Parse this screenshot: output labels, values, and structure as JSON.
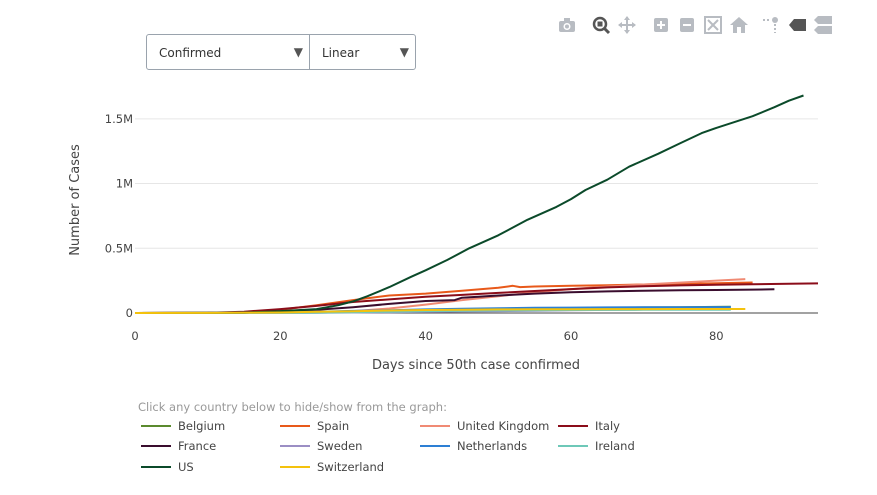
{
  "controls": {
    "metric_label": "Confirmed",
    "scale_label": "Linear"
  },
  "modebar": [
    "camera-icon",
    "zoom-icon",
    "pan-icon",
    "zoom-in-icon",
    "zoom-out-icon",
    "autoscale-icon",
    "reset-axes-icon",
    "spike-lines-icon",
    "hover-closest-icon",
    "hover-compare-icon"
  ],
  "legend_hint": "Click any country below to hide/show from the graph:",
  "chart_data": {
    "type": "line",
    "title": "",
    "xlabel": "Days since 50th case confirmed",
    "ylabel": "Number of Cases",
    "xlim": [
      0,
      94
    ],
    "ylim": [
      0,
      1800000
    ],
    "xticks": [
      0,
      20,
      40,
      60,
      80
    ],
    "xtick_labels": [
      "0",
      "20",
      "40",
      "60",
      "80"
    ],
    "yticks": [
      0,
      500000,
      1000000,
      1500000
    ],
    "ytick_labels": [
      "0",
      "0.5M",
      "1M",
      "1.5M"
    ],
    "grid": true,
    "legend_position": "bottom",
    "series": [
      {
        "name": "Belgium",
        "color": "#5b8a2e",
        "x": [
          0,
          10,
          20,
          25,
          30,
          35,
          40,
          45,
          50,
          55,
          60,
          65,
          70,
          75,
          80,
          82
        ],
        "y": [
          100,
          400,
          1500,
          3000,
          6000,
          10000,
          15000,
          20000,
          26000,
          32000,
          37000,
          40000,
          43000,
          45000,
          47000,
          48000
        ]
      },
      {
        "name": "Spain",
        "color": "#e8591a",
        "x": [
          0,
          10,
          15,
          20,
          25,
          30,
          35,
          40,
          45,
          50,
          52,
          53,
          55,
          60,
          65,
          70,
          75,
          80,
          85
        ],
        "y": [
          100,
          500,
          3000,
          25000,
          60000,
          100000,
          135000,
          150000,
          172000,
          195000,
          210000,
          200000,
          205000,
          210000,
          215000,
          220000,
          225000,
          230000,
          236000
        ]
      },
      {
        "name": "United Kingdom",
        "color": "#f08a74",
        "x": [
          0,
          10,
          20,
          25,
          30,
          35,
          40,
          45,
          50,
          55,
          60,
          65,
          70,
          75,
          80,
          84
        ],
        "y": [
          100,
          300,
          2000,
          6000,
          15000,
          35000,
          65000,
          100000,
          130000,
          160000,
          185000,
          205000,
          220000,
          235000,
          250000,
          262000
        ]
      },
      {
        "name": "Italy",
        "color": "#8b0d1a",
        "x": [
          0,
          10,
          15,
          20,
          25,
          30,
          35,
          40,
          45,
          50,
          55,
          60,
          65,
          70,
          75,
          80,
          85,
          90,
          94
        ],
        "y": [
          100,
          1500,
          10000,
          30000,
          55000,
          85000,
          105000,
          125000,
          140000,
          155000,
          170000,
          185000,
          198000,
          207000,
          213000,
          218000,
          222000,
          226000,
          229000
        ]
      },
      {
        "name": "France",
        "color": "#3a0d2e",
        "x": [
          0,
          10,
          20,
          25,
          30,
          35,
          40,
          44,
          45,
          50,
          55,
          60,
          65,
          70,
          75,
          80,
          85,
          88
        ],
        "y": [
          100,
          1500,
          10000,
          25000,
          45000,
          70000,
          93000,
          100000,
          118000,
          135000,
          150000,
          160000,
          167000,
          172000,
          175000,
          178000,
          181000,
          183000
        ]
      },
      {
        "name": "Sweden",
        "color": "#9b8ec4",
        "x": [
          0,
          10,
          20,
          25,
          30,
          35,
          40,
          45,
          50,
          55,
          60,
          65,
          70,
          74
        ],
        "y": [
          100,
          300,
          1000,
          2000,
          4000,
          6000,
          9000,
          12000,
          15000,
          18000,
          21000,
          24000,
          27000,
          29000
        ]
      },
      {
        "name": "Netherlands",
        "color": "#2d7fd4",
        "x": [
          0,
          10,
          20,
          25,
          30,
          35,
          40,
          45,
          50,
          55,
          60,
          65,
          70,
          75,
          80,
          82
        ],
        "y": [
          100,
          800,
          5000,
          10000,
          16000,
          22000,
          28000,
          33000,
          37000,
          40000,
          42000,
          43500,
          44500,
          45000,
          45500,
          45700
        ]
      },
      {
        "name": "Ireland",
        "color": "#6ec8b8",
        "x": [
          0,
          10,
          20,
          25,
          30,
          35,
          40,
          45,
          50,
          55,
          60,
          65,
          70,
          75,
          80,
          82
        ],
        "y": [
          100,
          300,
          1000,
          3000,
          6000,
          10000,
          15000,
          18000,
          20000,
          22000,
          23500,
          24000,
          24500,
          25000,
          25200,
          25300
        ]
      },
      {
        "name": "US",
        "color": "#0b4a2a",
        "x": [
          0,
          10,
          15,
          20,
          25,
          28,
          30,
          32,
          35,
          38,
          40,
          43,
          46,
          50,
          54,
          58,
          60,
          62,
          65,
          68,
          72,
          75,
          78,
          80,
          85,
          88,
          90,
          92
        ],
        "y": [
          100,
          400,
          2000,
          15000,
          30000,
          60000,
          90000,
          130000,
          200000,
          280000,
          330000,
          410000,
          500000,
          600000,
          720000,
          820000,
          880000,
          950000,
          1030000,
          1130000,
          1230000,
          1310000,
          1390000,
          1430000,
          1520000,
          1590000,
          1640000,
          1680000
        ]
      },
      {
        "name": "Switzerland",
        "color": "#f4c20d",
        "x": [
          0,
          10,
          20,
          25,
          30,
          35,
          40,
          45,
          50,
          55,
          60,
          65,
          70,
          75,
          80,
          84
        ],
        "y": [
          100,
          500,
          4000,
          9000,
          14000,
          19000,
          23000,
          25500,
          27500,
          28800,
          29600,
          30100,
          30400,
          30600,
          30800,
          30900
        ]
      }
    ]
  }
}
